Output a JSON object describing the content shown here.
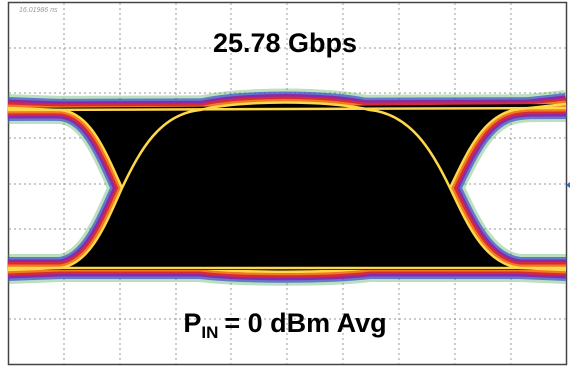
{
  "timestamp": "16.01986 ns",
  "rate_label": "25.78 Gbps",
  "power_label": {
    "symbol": "P",
    "subscript": "IN",
    "rest": "= 0 dBm Avg"
  }
}
